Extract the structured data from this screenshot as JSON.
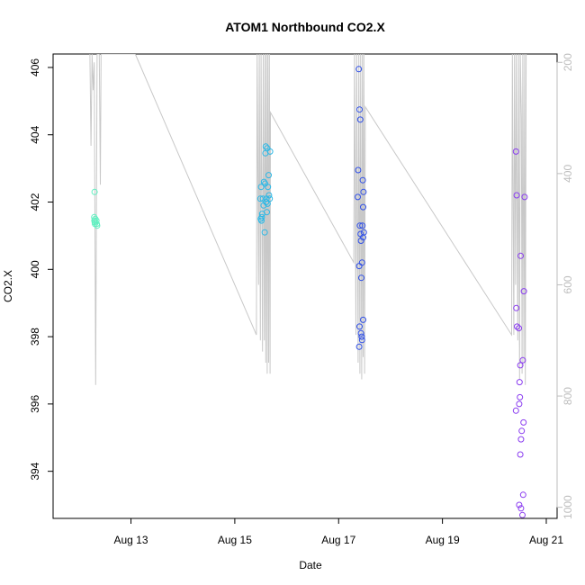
{
  "chart_data": {
    "type": "scatter",
    "title": "ATOM1 Northbound CO2.X",
    "xlabel": "Date",
    "ylabel": "CO2.X",
    "xlim": [
      "2016-08-11 12:00",
      "2016-08-21 05:00"
    ],
    "ylim": [
      392.6,
      406.4
    ],
    "y2lim": [
      1020,
      185
    ],
    "x_ticks": [
      {
        "label": "Aug 13",
        "value": "2016-08-13 00:00"
      },
      {
        "label": "Aug 15",
        "value": "2016-08-15 00:00"
      },
      {
        "label": "Aug 17",
        "value": "2016-08-17 00:00"
      },
      {
        "label": "Aug 19",
        "value": "2016-08-19 00:00"
      },
      {
        "label": "Aug 21",
        "value": "2016-08-21 00:00"
      }
    ],
    "y_ticks": [
      394,
      396,
      398,
      400,
      402,
      404,
      406
    ],
    "y2_ticks": [
      200,
      400,
      600,
      800,
      1000
    ],
    "grid": false,
    "series": [
      {
        "color": "#5ff0c0",
        "points": [
          [
            "2016-08-12 07:10",
            402.3
          ],
          [
            "2016-08-12 07:00",
            401.55
          ],
          [
            "2016-08-12 07:05",
            401.45
          ],
          [
            "2016-08-12 07:15",
            401.4
          ],
          [
            "2016-08-12 07:20",
            401.35
          ],
          [
            "2016-08-12 07:30",
            401.5
          ],
          [
            "2016-08-12 08:00",
            401.45
          ],
          [
            "2016-08-12 08:10",
            401.35
          ],
          [
            "2016-08-12 08:20",
            401.3
          ]
        ]
      },
      {
        "color": "#2cb8e6",
        "points": [
          [
            "2016-08-15 11:50",
            402.1
          ],
          [
            "2016-08-15 12:10",
            402.45
          ],
          [
            "2016-08-15 12:00",
            401.5
          ],
          [
            "2016-08-15 12:20",
            401.45
          ],
          [
            "2016-08-15 12:30",
            401.55
          ],
          [
            "2016-08-15 12:40",
            401.65
          ],
          [
            "2016-08-15 13:00",
            402.1
          ],
          [
            "2016-08-15 13:30",
            402.6
          ],
          [
            "2016-08-15 13:50",
            401.1
          ],
          [
            "2016-08-15 14:00",
            402.55
          ],
          [
            "2016-08-15 14:10",
            403.45
          ],
          [
            "2016-08-15 14:20",
            403.65
          ],
          [
            "2016-08-15 14:40",
            402.1
          ],
          [
            "2016-08-15 14:50",
            401.7
          ],
          [
            "2016-08-15 15:00",
            403.6
          ],
          [
            "2016-08-15 15:10",
            401.95
          ],
          [
            "2016-08-15 15:20",
            402.45
          ],
          [
            "2016-08-15 15:40",
            402.8
          ],
          [
            "2016-08-15 15:50",
            402.2
          ],
          [
            "2016-08-15 16:10",
            402.1
          ],
          [
            "2016-08-15 16:20",
            403.5
          ],
          [
            "2016-08-15 13:20",
            401.9
          ],
          [
            "2016-08-15 14:30",
            402.0
          ]
        ]
      },
      {
        "color": "#3050e8",
        "points": [
          [
            "2016-08-17 09:20",
            405.95
          ],
          [
            "2016-08-17 09:00",
            402.95
          ],
          [
            "2016-08-17 08:50",
            402.15
          ],
          [
            "2016-08-17 09:40",
            404.75
          ],
          [
            "2016-08-17 10:00",
            404.45
          ],
          [
            "2016-08-17 09:30",
            400.1
          ],
          [
            "2016-08-17 09:50",
            401.3
          ],
          [
            "2016-08-17 10:10",
            401.05
          ],
          [
            "2016-08-17 10:20",
            400.85
          ],
          [
            "2016-08-17 10:30",
            399.75
          ],
          [
            "2016-08-17 10:50",
            400.2
          ],
          [
            "2016-08-17 11:00",
            401.3
          ],
          [
            "2016-08-17 11:10",
            402.65
          ],
          [
            "2016-08-17 11:30",
            402.3
          ],
          [
            "2016-08-17 11:20",
            401.85
          ],
          [
            "2016-08-17 11:40",
            401.1
          ],
          [
            "2016-08-17 11:20",
            400.95
          ],
          [
            "2016-08-17 09:40",
            398.3
          ],
          [
            "2016-08-17 09:30",
            397.7
          ],
          [
            "2016-08-17 10:20",
            398.1
          ],
          [
            "2016-08-17 10:40",
            398.0
          ],
          [
            "2016-08-17 10:50",
            397.9
          ],
          [
            "2016-08-17 11:20",
            398.5
          ]
        ]
      },
      {
        "color": "#8a3cf0",
        "points": [
          [
            "2016-08-20 10:00",
            403.5
          ],
          [
            "2016-08-20 10:20",
            402.2
          ],
          [
            "2016-08-20 10:10",
            398.85
          ],
          [
            "2016-08-20 10:30",
            398.3
          ],
          [
            "2016-08-20 11:20",
            398.25
          ],
          [
            "2016-08-20 12:00",
            397.15
          ],
          [
            "2016-08-20 11:40",
            396.65
          ],
          [
            "2016-08-20 11:50",
            396.2
          ],
          [
            "2016-08-20 11:30",
            396.0
          ],
          [
            "2016-08-20 10:00",
            395.8
          ],
          [
            "2016-08-20 12:10",
            400.4
          ],
          [
            "2016-08-20 12:40",
            395.2
          ],
          [
            "2016-08-20 12:20",
            394.95
          ],
          [
            "2016-08-20 12:00",
            394.5
          ],
          [
            "2016-08-20 11:30",
            393.0
          ],
          [
            "2016-08-20 12:20",
            392.9
          ],
          [
            "2016-08-20 13:00",
            392.7
          ],
          [
            "2016-08-20 13:20",
            393.3
          ],
          [
            "2016-08-20 13:30",
            395.45
          ],
          [
            "2016-08-20 13:10",
            397.3
          ],
          [
            "2016-08-20 13:40",
            399.35
          ],
          [
            "2016-08-20 14:00",
            402.15
          ]
        ]
      }
    ],
    "secondary_line": {
      "color": "#c8c8c8",
      "axis": "right",
      "points": [
        [
          "2016-08-12 05:00",
          185
        ],
        [
          "2016-08-12 05:30",
          350
        ],
        [
          "2016-08-12 06:00",
          185
        ],
        [
          "2016-08-12 06:30",
          250
        ],
        [
          "2016-08-12 07:00",
          200
        ],
        [
          "2016-08-12 07:40",
          780
        ],
        [
          "2016-08-12 08:20",
          185
        ],
        [
          "2016-08-12 09:20",
          185
        ],
        [
          "2016-08-12 09:50",
          420
        ],
        [
          "2016-08-12 10:10",
          185
        ],
        [
          "2016-08-13 02:00",
          185
        ],
        [
          "2016-08-15 10:00",
          690
        ],
        [
          "2016-08-15 10:20",
          185
        ],
        [
          "2016-08-15 11:00",
          600
        ],
        [
          "2016-08-15 11:20",
          185
        ],
        [
          "2016-08-15 11:50",
          700
        ],
        [
          "2016-08-15 12:10",
          185
        ],
        [
          "2016-08-15 12:50",
          720
        ],
        [
          "2016-08-15 13:10",
          185
        ],
        [
          "2016-08-15 13:40",
          700
        ],
        [
          "2016-08-15 14:00",
          185
        ],
        [
          "2016-08-15 14:20",
          740
        ],
        [
          "2016-08-15 14:40",
          185
        ],
        [
          "2016-08-15 15:00",
          760
        ],
        [
          "2016-08-15 15:20",
          185
        ],
        [
          "2016-08-15 15:40",
          740
        ],
        [
          "2016-08-15 16:00",
          185
        ],
        [
          "2016-08-15 16:20",
          760
        ],
        [
          "2016-08-15 16:30",
          290
        ],
        [
          "2016-08-17 07:00",
          560
        ],
        [
          "2016-08-17 07:20",
          185
        ],
        [
          "2016-08-17 08:00",
          690
        ],
        [
          "2016-08-17 08:20",
          185
        ],
        [
          "2016-08-17 09:00",
          740
        ],
        [
          "2016-08-17 09:20",
          185
        ],
        [
          "2016-08-17 09:50",
          760
        ],
        [
          "2016-08-17 10:10",
          185
        ],
        [
          "2016-08-17 10:40",
          770
        ],
        [
          "2016-08-17 11:00",
          185
        ],
        [
          "2016-08-17 11:20",
          730
        ],
        [
          "2016-08-17 11:40",
          185
        ],
        [
          "2016-08-17 12:00",
          760
        ],
        [
          "2016-08-17 12:20",
          280
        ],
        [
          "2016-08-20 08:00",
          690
        ],
        [
          "2016-08-20 08:20",
          185
        ],
        [
          "2016-08-20 09:00",
          690
        ],
        [
          "2016-08-20 09:20",
          185
        ],
        [
          "2016-08-20 09:50",
          600
        ],
        [
          "2016-08-20 10:10",
          185
        ],
        [
          "2016-08-20 10:50",
          700
        ],
        [
          "2016-08-20 11:10",
          185
        ],
        [
          "2016-08-20 11:40",
          770
        ],
        [
          "2016-08-20 12:00",
          185
        ],
        [
          "2016-08-20 12:30",
          300
        ],
        [
          "2016-08-20 12:50",
          760
        ],
        [
          "2016-08-20 13:10",
          185
        ],
        [
          "2016-08-20 13:40",
          740
        ],
        [
          "2016-08-20 14:00",
          185
        ],
        [
          "2016-08-20 14:20",
          780
        ],
        [
          "2016-08-20 14:40",
          185
        ]
      ]
    }
  }
}
